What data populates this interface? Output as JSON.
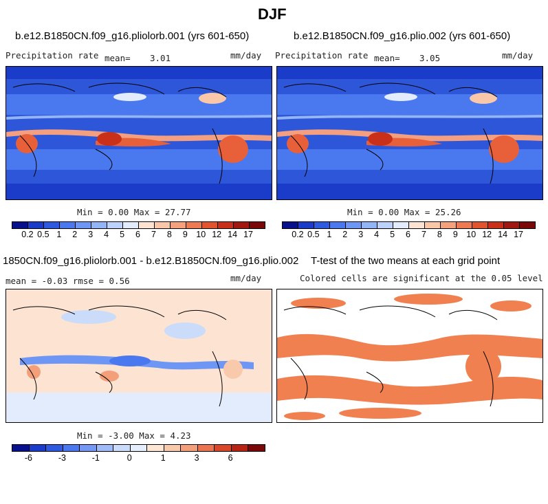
{
  "season": "DJF",
  "panels": {
    "left": {
      "title": "b.e12.B1850CN.f09_g16.pliolorb.001 (yrs 601-650)",
      "var": "Precipitation rate",
      "mean_label": "mean=",
      "mean": "3.01",
      "units": "mm/day",
      "minmax": "Min =   0.00 Max =  27.77"
    },
    "right": {
      "title": "b.e12.B1850CN.f09_g16.plio.002 (yrs 601-650)",
      "var": "Precipitation rate",
      "mean_label": "mean=",
      "mean": "3.05",
      "units": "mm/day",
      "minmax": "Min =   0.00 Max =  25.26"
    },
    "diff": {
      "title": "1850CN.f09_g16.pliolorb.001 - b.e12.B1850CN.f09_g16.plio.002",
      "stats": "mean = -0.03    rmse =   0.56",
      "units": "mm/day",
      "minmax": "Min =  -3.00 Max =   4.23"
    },
    "ttest": {
      "title": "T-test of the two means at each grid point",
      "subtitle": "Colored cells are significant at the 0.05 level"
    }
  },
  "colorbars": {
    "precip": {
      "colors": [
        "#08108c",
        "#1a3cc8",
        "#2e5ae0",
        "#4a78ee",
        "#6e96f4",
        "#94b4f8",
        "#bcd2fa",
        "#e2ecfc",
        "#fde4d2",
        "#fac8a8",
        "#f5a27c",
        "#ee7a52",
        "#e2542e",
        "#c8301a",
        "#a01810",
        "#7a0808"
      ],
      "labels": [
        "0.2",
        "0.5",
        "1",
        "2",
        "3",
        "4",
        "5",
        "6",
        "7",
        "8",
        "9",
        "10",
        "12",
        "14",
        "17"
      ]
    },
    "diff": {
      "colors": [
        "#08108c",
        "#1a3cc8",
        "#2e5ae0",
        "#4a78ee",
        "#7498f4",
        "#a0bcf8",
        "#cadcfa",
        "#e4eefc",
        "#fde6d4",
        "#f9c9ab",
        "#f39f7a",
        "#ea7450",
        "#d84828",
        "#b82414",
        "#7a0808"
      ],
      "labels": [
        "-6",
        "-3",
        "-1",
        "0",
        "1",
        "3",
        "6"
      ]
    }
  },
  "colors": {
    "ocean_deep": "#1a3cc8",
    "ocean_mid": "#3f6ce6",
    "wet": "#e8603a",
    "diff_bg": "#fde4d2",
    "sig": "#f08050"
  }
}
